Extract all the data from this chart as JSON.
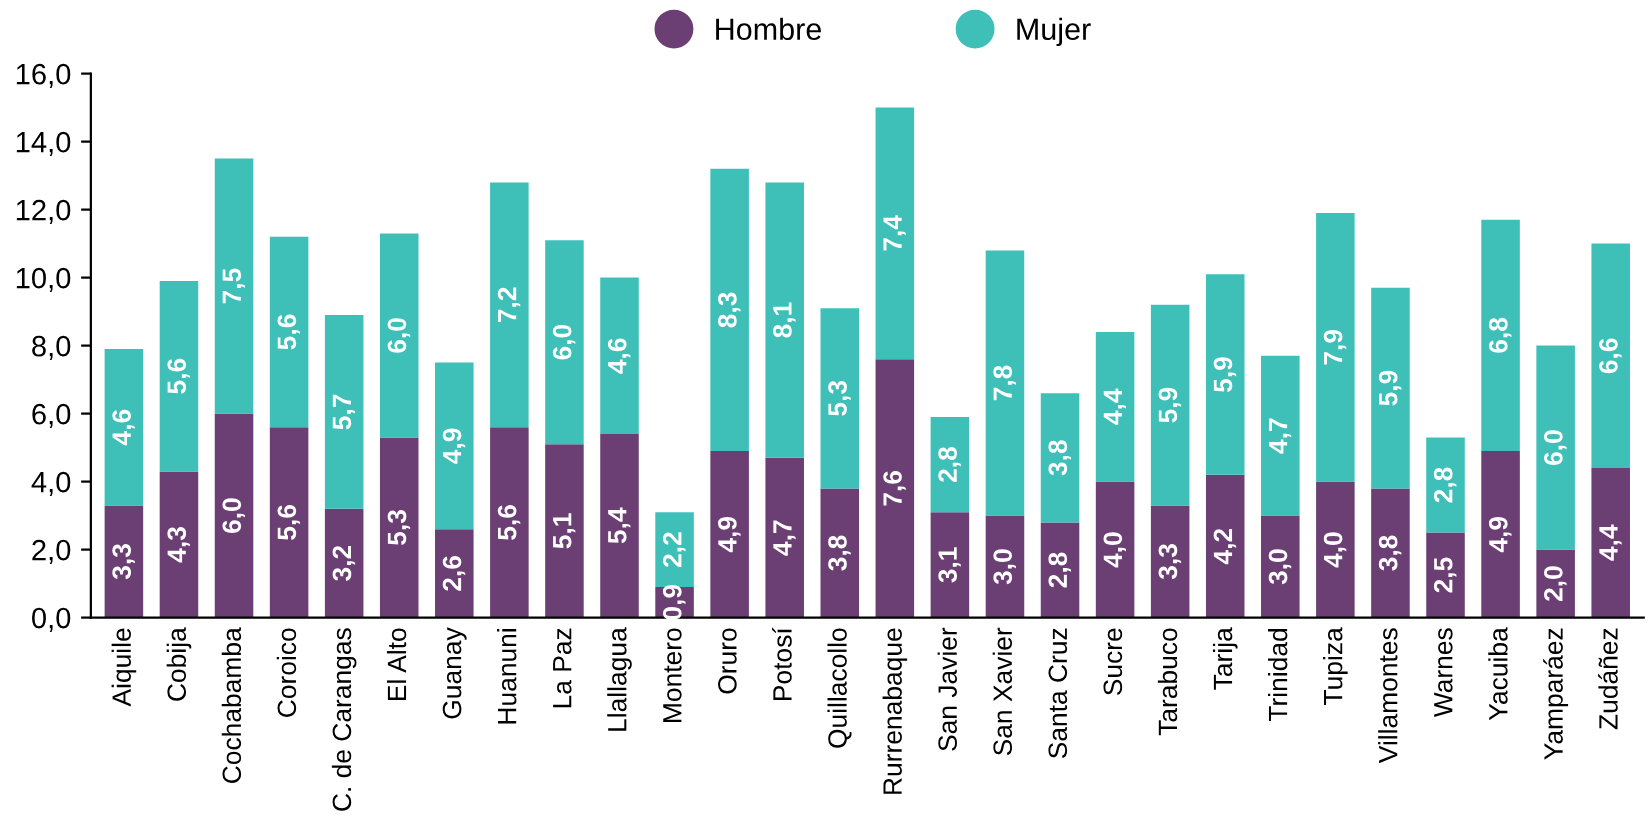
{
  "chart_data": {
    "type": "bar",
    "stacked": true,
    "legend": "top",
    "grid": false,
    "categories": [
      "Aiquile",
      "Cobija",
      "Cochabamba",
      "Coroico",
      "C. de Carangas",
      "El Alto",
      "Guanay",
      "Huanuni",
      "La Paz",
      "Llallagua",
      "Montero",
      "Oruro",
      "Potosí",
      "Quillacollo",
      "Rurrenabaque",
      "San Javier",
      "San Xavier",
      "Santa Cruz",
      "Sucre",
      "Tarabuco",
      "Tarija",
      "Trinidad",
      "Tupiza",
      "Villamontes",
      "Warnes",
      "Yacuiba",
      "Yamparáez",
      "Zudáñez"
    ],
    "series": [
      {
        "name": "Hombre",
        "color": "#6b3f73",
        "values": [
          3.3,
          4.3,
          6.0,
          5.6,
          3.2,
          5.3,
          2.6,
          5.6,
          5.1,
          5.4,
          0.9,
          4.9,
          4.7,
          3.8,
          7.6,
          3.1,
          3.0,
          2.8,
          4.0,
          3.3,
          4.2,
          3.0,
          4.0,
          3.8,
          2.5,
          4.9,
          2.0,
          4.4
        ],
        "value_labels": [
          "3,3",
          "4,3",
          "6,0",
          "5,6",
          "3,2",
          "5,3",
          "2,6",
          "5,6",
          "5,1",
          "5,4",
          "0,9",
          "4,9",
          "4,7",
          "3,8",
          "7,6",
          "3,1",
          "3,0",
          "2,8",
          "4,0",
          "3,3",
          "4,2",
          "3,0",
          "4,0",
          "3,8",
          "2,5",
          "4,9",
          "2,0",
          "4,4"
        ]
      },
      {
        "name": "Mujer",
        "color": "#3ec0b9",
        "values": [
          4.6,
          5.6,
          7.5,
          5.6,
          5.7,
          6.0,
          4.9,
          7.2,
          6.0,
          4.6,
          2.2,
          8.3,
          8.1,
          5.3,
          7.4,
          2.8,
          7.8,
          3.8,
          4.4,
          5.9,
          5.9,
          4.7,
          7.9,
          5.9,
          2.8,
          6.8,
          6.0,
          6.6
        ],
        "value_labels": [
          "4,6",
          "5,6",
          "7,5",
          "5,6",
          "5,7",
          "6,0",
          "4,9",
          "7,2",
          "6,0",
          "4,6",
          "2,2",
          "8,3",
          "8,1",
          "5,3",
          "7,4",
          "2,8",
          "7,8",
          "3,8",
          "4,4",
          "5,9",
          "5,9",
          "4,7",
          "7,9",
          "5,9",
          "2,8",
          "6,8",
          "6,0",
          "6,6"
        ]
      }
    ],
    "ylim": [
      0,
      16
    ],
    "yticks": [
      {
        "value": 0,
        "label": "0,0"
      },
      {
        "value": 2,
        "label": "2,0"
      },
      {
        "value": 4,
        "label": "4,0"
      },
      {
        "value": 6,
        "label": "6,0"
      },
      {
        "value": 8,
        "label": "8,0"
      },
      {
        "value": 10,
        "label": "10,0"
      },
      {
        "value": 12,
        "label": "12,0"
      },
      {
        "value": 14,
        "label": "14,0"
      },
      {
        "value": 16,
        "label": "16,0"
      }
    ]
  }
}
